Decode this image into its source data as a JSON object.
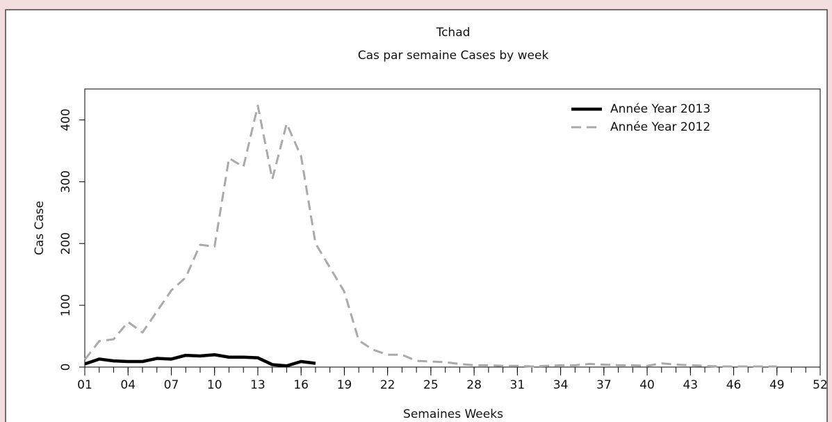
{
  "chart_data": {
    "type": "line",
    "title": "Tchad",
    "subtitle": "Cas par semaine Cases by week",
    "x_label": "Semaines Weeks",
    "y_label": "Cas Case",
    "x": [
      1,
      2,
      3,
      4,
      5,
      6,
      7,
      8,
      9,
      10,
      11,
      12,
      13,
      14,
      15,
      16,
      17,
      18,
      19,
      20,
      21,
      22,
      23,
      24,
      25,
      26,
      27,
      28,
      29,
      30,
      31,
      32,
      33,
      34,
      35,
      36,
      37,
      38,
      39,
      40,
      41,
      42,
      43,
      44,
      45,
      46,
      47,
      48,
      49
    ],
    "series": [
      {
        "name": "Année Year 2013",
        "color": "#000000",
        "dash": false,
        "values": [
          5,
          13,
          10,
          9,
          9,
          14,
          13,
          19,
          18,
          20,
          16,
          16,
          15,
          4,
          2,
          9,
          6,
          null,
          null,
          null,
          null,
          null,
          null,
          null,
          null,
          null,
          null,
          null,
          null,
          null,
          null,
          null,
          null,
          null,
          null,
          null,
          null,
          null,
          null,
          null,
          null,
          null,
          null,
          null,
          null,
          null,
          null,
          null,
          null
        ]
      },
      {
        "name": "Année Year 2012",
        "color": "#aaaaaa",
        "dash": true,
        "values": [
          12,
          42,
          45,
          73,
          56,
          90,
          124,
          145,
          198,
          195,
          338,
          324,
          423,
          304,
          394,
          341,
          200,
          161,
          122,
          43,
          28,
          20,
          20,
          10,
          9,
          8,
          5,
          3,
          3,
          2,
          2,
          1,
          2,
          3,
          3,
          5,
          4,
          3,
          3,
          2,
          6,
          4,
          3,
          2,
          1,
          1,
          1,
          1,
          1
        ]
      }
    ],
    "xlim": [
      1,
      52
    ],
    "xticks": [
      {
        "value": 1,
        "label": "01"
      },
      {
        "value": 4,
        "label": "04"
      },
      {
        "value": 7,
        "label": "07"
      },
      {
        "value": 10,
        "label": "10"
      },
      {
        "value": 13,
        "label": "13"
      },
      {
        "value": 16,
        "label": "16"
      },
      {
        "value": 19,
        "label": "19"
      },
      {
        "value": 22,
        "label": "22"
      },
      {
        "value": 25,
        "label": "25"
      },
      {
        "value": 28,
        "label": "28"
      },
      {
        "value": 31,
        "label": "31"
      },
      {
        "value": 34,
        "label": "34"
      },
      {
        "value": 37,
        "label": "37"
      },
      {
        "value": 40,
        "label": "40"
      },
      {
        "value": 43,
        "label": "43"
      },
      {
        "value": 46,
        "label": "46"
      },
      {
        "value": 49,
        "label": "49"
      },
      {
        "value": 52,
        "label": "52"
      }
    ],
    "ylim": [
      0,
      450
    ],
    "yticks": [
      0,
      100,
      200,
      300,
      400
    ],
    "legend": "top-right"
  }
}
